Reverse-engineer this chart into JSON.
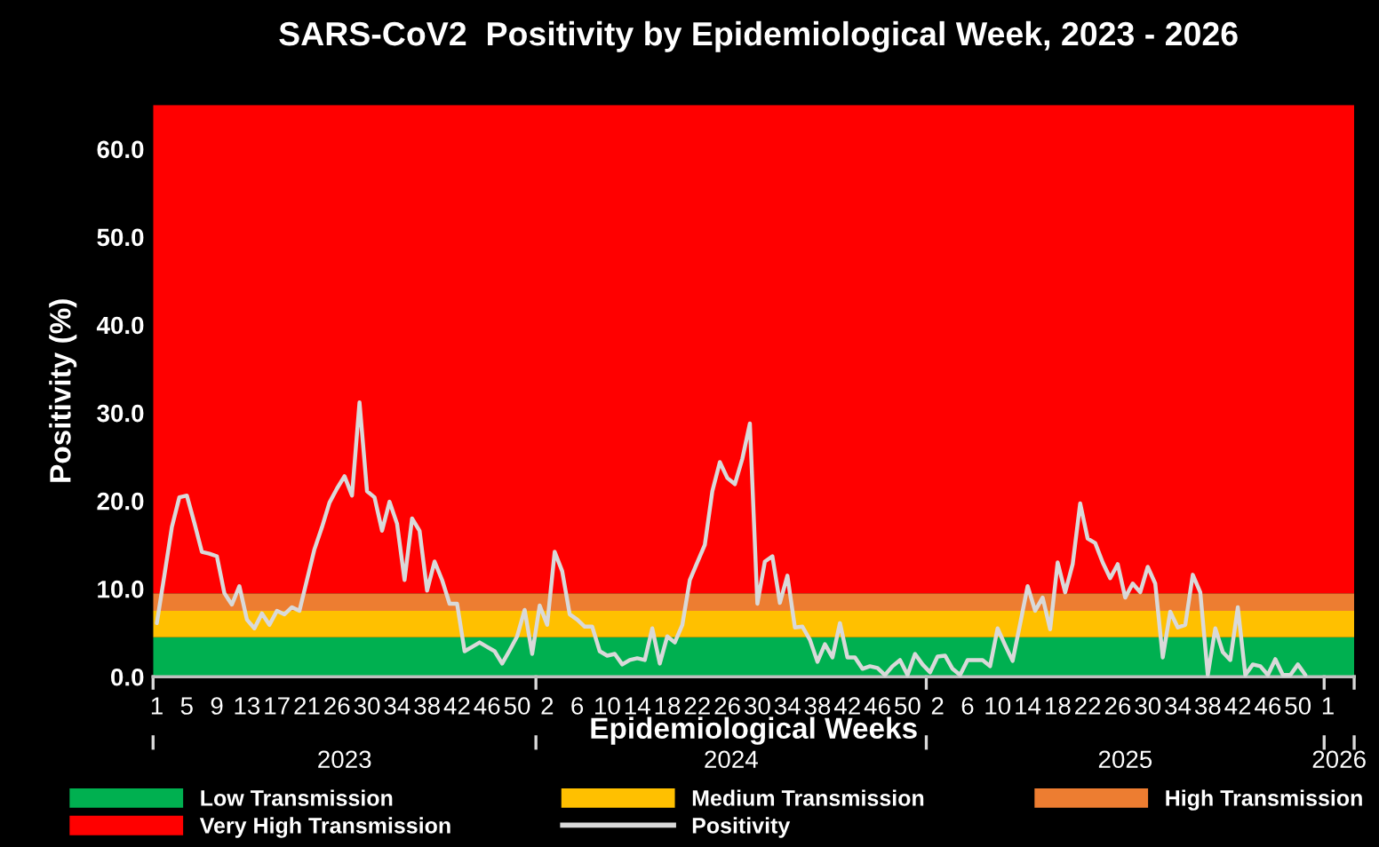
{
  "chart_data": {
    "type": "line",
    "title": "SARS-CoV2  Positivity by Epidemiological Week, 2023 - 2026",
    "xlabel": "Epidemiological Weeks",
    "ylabel": "Positivity (%)",
    "categories": [
      "1",
      null,
      null,
      null,
      "5",
      null,
      null,
      null,
      "9",
      null,
      null,
      null,
      "13",
      null,
      null,
      null,
      "17",
      null,
      null,
      null,
      "21",
      null,
      null,
      null,
      "26",
      null,
      null,
      null,
      "30",
      null,
      null,
      null,
      "34",
      null,
      null,
      null,
      "38",
      null,
      null,
      null,
      "42",
      null,
      null,
      null,
      "46",
      null,
      null,
      null,
      "50",
      null,
      null,
      null,
      "2",
      null,
      null,
      null,
      "6",
      null,
      null,
      null,
      "10",
      null,
      null,
      null,
      "14",
      null,
      null,
      null,
      "18",
      null,
      null,
      null,
      "22",
      null,
      null,
      null,
      "26",
      null,
      null,
      null,
      "30",
      null,
      null,
      null,
      "34",
      null,
      null,
      null,
      "38",
      null,
      null,
      null,
      "42",
      null,
      null,
      null,
      "46",
      null,
      null,
      null,
      "50",
      null,
      null,
      null,
      "2",
      null,
      null,
      null,
      "6",
      null,
      null,
      null,
      "10",
      null,
      null,
      null,
      "14",
      null,
      null,
      null,
      "18",
      null,
      null,
      null,
      "22",
      null,
      null,
      null,
      "26",
      null,
      null,
      null,
      "30",
      null,
      null,
      null,
      "34",
      null,
      null,
      null,
      "38",
      null,
      null,
      null,
      "42",
      null,
      null,
      null,
      "46",
      null,
      null,
      null,
      "50",
      null,
      null,
      null,
      "1",
      null,
      null,
      null
    ],
    "series": [
      {
        "name": "Positivity",
        "color": "#d9d9d9",
        "values": [
          6.1,
          11.5,
          17,
          20.4,
          20.6,
          17.5,
          14.2,
          14,
          13.7,
          9.5,
          8.2,
          10.3,
          6.5,
          5.5,
          7.2,
          5.9,
          7.5,
          7.1,
          7.9,
          7.5,
          11,
          14.5,
          17,
          19.8,
          21.4,
          22.8,
          20.6,
          31.2,
          21.1,
          20.4,
          16.6,
          19.9,
          17.4,
          11.0,
          18.0,
          16.6,
          9.8,
          13.1,
          11.0,
          8.3,
          8.3,
          2.9,
          3.4,
          3.9,
          3.4,
          2.9,
          1.5,
          3.0,
          4.6,
          7.6,
          2.6,
          8.1,
          5.9,
          14.2,
          12.0,
          7.1,
          6.5,
          5.7,
          5.7,
          2.9,
          2.4,
          2.6,
          1.4,
          1.9,
          2.1,
          1.9,
          5.5,
          1.5,
          4.6,
          3.9,
          5.9,
          11.0,
          13.0,
          15.0,
          21.1,
          24.4,
          22.6,
          21.9,
          24.8,
          28.8,
          8.3,
          13.1,
          13.7,
          8.4,
          11.5,
          5.6,
          5.7,
          4.2,
          1.7,
          3.7,
          2.2,
          6.1,
          2.2,
          2.2,
          0.9,
          1.2,
          1.0,
          0.2,
          1.2,
          1.9,
          0.2,
          2.6,
          1.4,
          0.5,
          2.3,
          2.4,
          0.9,
          0.2,
          1.9,
          1.9,
          1.9,
          1.2,
          5.5,
          3.6,
          1.8,
          6,
          10.3,
          7.5,
          9.0,
          5.4,
          13.0,
          9.6,
          12.8,
          19.7,
          15.7,
          15.2,
          13.0,
          11.2,
          12.8,
          9.0,
          10.6,
          9.6,
          12.5,
          10.6,
          2.2,
          7.4,
          5.6,
          5.9,
          11.6,
          9.6,
          0.2,
          5.5,
          2.8,
          1.9,
          7.9,
          0.2,
          1.4,
          1.2,
          0.2,
          2.0,
          0.2,
          0.2,
          1.4,
          0.2,
          null,
          null,
          null,
          null,
          null,
          null
        ]
      }
    ],
    "bands": [
      {
        "axis": "y",
        "from": 0,
        "to": 4.5,
        "label": "Low Transmission",
        "color": "#00b050"
      },
      {
        "axis": "y",
        "from": 4.5,
        "to": 7.5,
        "label": "Medium Transmission",
        "color": "#ffc000"
      },
      {
        "axis": "y",
        "from": 7.5,
        "to": 9.5,
        "label": "High Transmission",
        "color": "#ed7d31"
      },
      {
        "axis": "y",
        "from": 9.5,
        "to": 65,
        "label": "Very High Transmission",
        "color": "#ff0000"
      }
    ],
    "annotations": [
      "2023",
      "2024",
      "2025",
      "2026"
    ],
    "ylim": [
      0,
      65
    ],
    "yticks": [
      {
        "value": 0,
        "label": "0.0"
      },
      {
        "value": 10,
        "label": "10.0"
      },
      {
        "value": 20,
        "label": "20.0"
      },
      {
        "value": 30,
        "label": "30.0"
      },
      {
        "value": 40,
        "label": "40.0"
      },
      {
        "value": 50,
        "label": "50.0"
      },
      {
        "value": 60,
        "label": "60.0"
      }
    ],
    "grid": false,
    "legend": "bottom",
    "marker": "none",
    "line_style": "solid"
  }
}
